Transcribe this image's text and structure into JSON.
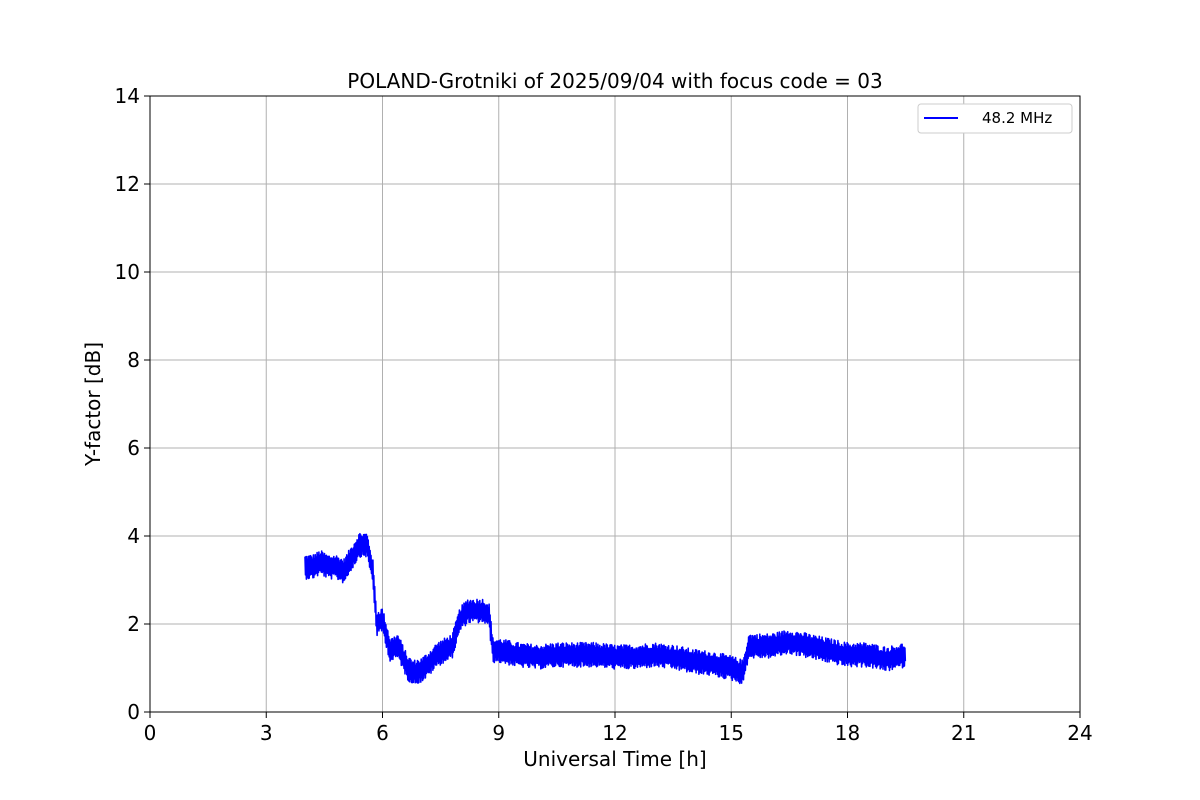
{
  "chart_data": {
    "type": "line",
    "title": "POLAND-Grotniki of 2025/09/04 with focus code = 03",
    "xlabel": "Universal Time [h]",
    "ylabel": "Y-factor [dB]",
    "xlim": [
      0,
      24
    ],
    "ylim": [
      0,
      14
    ],
    "xticks": [
      0,
      3,
      6,
      9,
      12,
      15,
      18,
      21,
      24
    ],
    "yticks": [
      0,
      2,
      4,
      6,
      8,
      10,
      12,
      14
    ],
    "grid": true,
    "legend_position": "top-right",
    "series": [
      {
        "name": "48.2 MHz",
        "color": "#0000ff",
        "x": [
          4.0,
          4.2,
          4.4,
          4.6,
          4.8,
          5.0,
          5.2,
          5.4,
          5.6,
          5.75,
          5.85,
          6.0,
          6.2,
          6.4,
          6.55,
          6.65,
          6.8,
          7.0,
          7.2,
          7.4,
          7.6,
          7.8,
          8.0,
          8.2,
          8.4,
          8.6,
          8.75,
          8.85,
          9.0,
          9.5,
          10.0,
          10.5,
          11.0,
          11.5,
          12.0,
          12.5,
          13.0,
          13.5,
          14.0,
          14.5,
          15.0,
          15.3,
          15.45,
          15.6,
          16.0,
          16.5,
          17.0,
          17.5,
          18.0,
          18.5,
          19.0,
          19.5
        ],
        "y": [
          3.3,
          3.3,
          3.4,
          3.3,
          3.3,
          3.2,
          3.5,
          3.8,
          3.8,
          3.2,
          2.0,
          2.1,
          1.4,
          1.5,
          1.2,
          1.0,
          0.9,
          0.95,
          1.1,
          1.3,
          1.4,
          1.5,
          2.1,
          2.3,
          2.3,
          2.3,
          2.2,
          1.4,
          1.4,
          1.3,
          1.25,
          1.3,
          1.3,
          1.3,
          1.25,
          1.25,
          1.3,
          1.25,
          1.15,
          1.1,
          1.0,
          0.9,
          1.5,
          1.5,
          1.5,
          1.6,
          1.5,
          1.4,
          1.3,
          1.3,
          1.2,
          1.3
        ],
        "band_halfwidth": 0.28
      }
    ]
  }
}
